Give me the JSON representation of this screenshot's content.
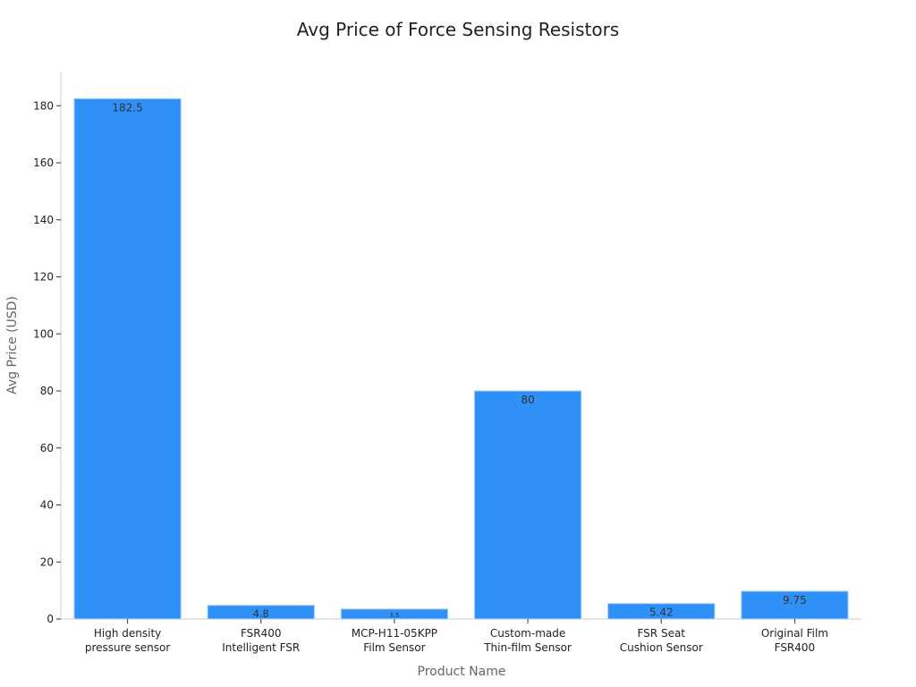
{
  "chart_data": {
    "type": "bar",
    "title": "Avg Price of Force Sensing Resistors",
    "xlabel": "Product Name",
    "ylabel": "Avg Price (USD)",
    "categories": [
      [
        "High density",
        "pressure sensor"
      ],
      [
        "FSR400",
        "Intelligent FSR"
      ],
      [
        "MCP-H11-05KPP",
        "Film Sensor"
      ],
      [
        "Custom-made",
        "Thin-film Sensor"
      ],
      [
        "FSR Seat",
        "Cushion Sensor"
      ],
      [
        "Original Film",
        "FSR400"
      ]
    ],
    "values": [
      182.5,
      4.8,
      3.5,
      80,
      5.42,
      9.75
    ],
    "value_labels": [
      "182.5",
      "4.8",
      "3.5",
      "80",
      "5.42",
      "9.75"
    ],
    "ylim": [
      0,
      192
    ],
    "yticks": [
      0,
      20,
      40,
      60,
      80,
      100,
      120,
      140,
      160,
      180
    ],
    "grid": false,
    "legend": "none",
    "colors": {
      "bar": "#2f91f7",
      "bar_edge": "#a9d1fb",
      "axis": "#cccccc"
    }
  }
}
